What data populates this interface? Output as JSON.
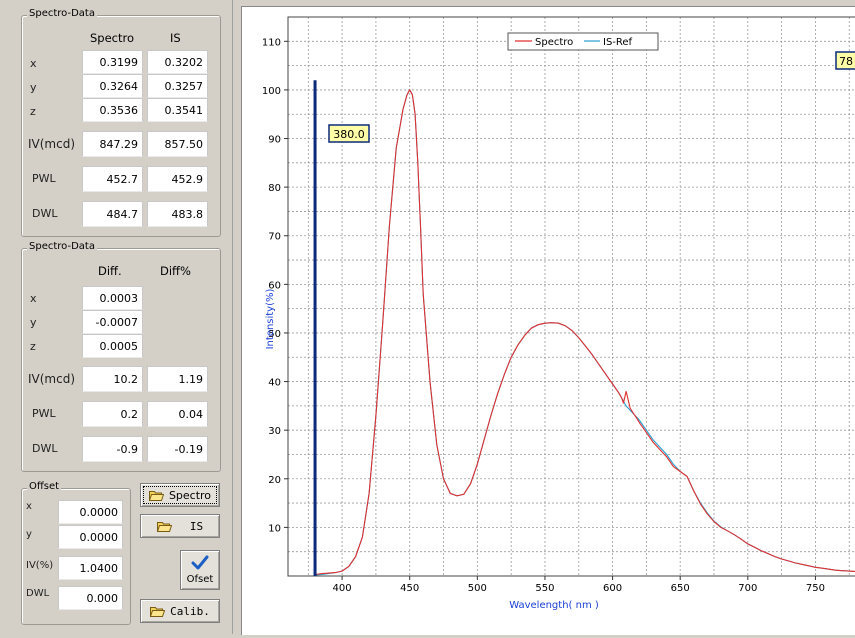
{
  "group1": {
    "title": "Spectro-Data",
    "col_spectro": "Spectro",
    "col_is": "IS",
    "rows": [
      {
        "label": "x",
        "spectro": "0.3199",
        "is": "0.3202"
      },
      {
        "label": "y",
        "spectro": "0.3264",
        "is": "0.3257"
      },
      {
        "label": "z",
        "spectro": "0.3536",
        "is": "0.3541"
      },
      {
        "label": "IV(mcd)",
        "spectro": "847.29",
        "is": "857.50"
      },
      {
        "label": "PWL",
        "spectro": "452.7",
        "is": "452.9"
      },
      {
        "label": "DWL",
        "spectro": "484.7",
        "is": "483.8"
      }
    ]
  },
  "group2": {
    "title": "Spectro-Data",
    "col_diff": "Diff.",
    "col_diffpct": "Diff%",
    "rows": [
      {
        "label": "x",
        "diff": "0.0003",
        "pct": ""
      },
      {
        "label": "y",
        "diff": "-0.0007",
        "pct": ""
      },
      {
        "label": "z",
        "diff": "0.0005",
        "pct": ""
      },
      {
        "label": "IV(mcd)",
        "diff": "10.2",
        "pct": "1.19"
      },
      {
        "label": "PWL",
        "diff": "0.2",
        "pct": "0.04"
      },
      {
        "label": "DWL",
        "diff": "-0.9",
        "pct": "-0.19"
      }
    ]
  },
  "offset": {
    "title": "Offset",
    "rows": [
      {
        "label": "x",
        "value": "0.0000"
      },
      {
        "label": "y",
        "value": "0.0000"
      },
      {
        "label": "IV(%)",
        "value": "1.0400"
      },
      {
        "label": "DWL",
        "value": "0.000"
      }
    ]
  },
  "buttons": {
    "spectro": "Spectro",
    "is": "IS",
    "ofset": "Ofset",
    "calib": "Calib."
  },
  "chart_data": {
    "type": "line",
    "xlabel": "Wavelength( nm )",
    "ylabel": "Intensity(%)",
    "xlim": [
      360,
      780
    ],
    "ylim": [
      0,
      115
    ],
    "x_ticks": [
      400,
      450,
      500,
      550,
      600,
      650,
      700,
      750
    ],
    "y_ticks": [
      10,
      20,
      30,
      40,
      50,
      60,
      70,
      80,
      90,
      100,
      110
    ],
    "grid": true,
    "legend": "top-center",
    "cursor_left": "380.0",
    "cursor_right": "78",
    "series": [
      {
        "name": "Spectro",
        "color": "#e03030",
        "x": [
          380,
          385,
          390,
          395,
          400,
          405,
          410,
          415,
          420,
          425,
          430,
          435,
          440,
          445,
          448,
          450,
          452,
          454,
          456,
          458,
          460,
          465,
          470,
          475,
          480,
          485,
          490,
          495,
          500,
          505,
          510,
          515,
          520,
          525,
          530,
          535,
          540,
          545,
          550,
          555,
          560,
          565,
          570,
          575,
          580,
          585,
          590,
          595,
          600,
          605,
          607,
          608,
          610,
          613,
          617,
          620,
          625,
          630,
          635,
          640,
          645,
          650,
          655,
          660,
          665,
          670,
          675,
          680,
          685,
          690,
          695,
          700,
          705,
          710,
          715,
          720,
          725,
          730,
          735,
          740,
          745,
          750,
          755,
          760,
          765,
          770,
          775,
          780
        ],
        "y": [
          0.3,
          0.5,
          0.6,
          0.7,
          1,
          2,
          4,
          8,
          17,
          33,
          52,
          72,
          88,
          96,
          99,
          100,
          99,
          95,
          85,
          72,
          58,
          40,
          27,
          20,
          17,
          16.5,
          16.8,
          19,
          23,
          28,
          33,
          37.5,
          41.5,
          45,
          47.5,
          49.5,
          51,
          51.7,
          52,
          52.1,
          52,
          51.5,
          50.5,
          49,
          47.3,
          45.5,
          43.5,
          41.5,
          39.5,
          37.5,
          36.5,
          35.5,
          38,
          34.5,
          32.8,
          31.5,
          29.5,
          27.5,
          26,
          24.5,
          22.5,
          21.5,
          20.5,
          17.5,
          14.8,
          12.8,
          11.2,
          10,
          9.3,
          8.5,
          7.6,
          6.6,
          5.9,
          5.2,
          4.6,
          4,
          3.5,
          3.1,
          2.7,
          2.4,
          2.1,
          1.8,
          1.6,
          1.4,
          1.2,
          1.1,
          1,
          0.9
        ]
      },
      {
        "name": "IS-Ref",
        "color": "#2a9fd0",
        "x": [
          380,
          385,
          390,
          395,
          400,
          405,
          410,
          415,
          420,
          425,
          430,
          435,
          440,
          445,
          448,
          450,
          452,
          454,
          456,
          458,
          460,
          465,
          470,
          475,
          480,
          485,
          490,
          495,
          500,
          505,
          510,
          515,
          520,
          525,
          530,
          535,
          540,
          545,
          550,
          555,
          560,
          565,
          570,
          575,
          580,
          585,
          590,
          595,
          600,
          605,
          610,
          615,
          620,
          625,
          630,
          635,
          640,
          645,
          650,
          655,
          660,
          665,
          670,
          675,
          680,
          685,
          690,
          695,
          700,
          705,
          710,
          715,
          720,
          725,
          730,
          735,
          740,
          745,
          750,
          755,
          760,
          765,
          770,
          775,
          780
        ],
        "y": [
          0.2,
          0.3,
          0.5,
          0.7,
          1,
          2,
          4,
          8,
          17,
          33,
          52,
          72,
          88,
          96,
          99,
          100,
          99,
          95,
          85,
          72,
          58,
          40,
          27,
          20,
          17,
          16.5,
          16.8,
          19,
          23,
          28,
          33,
          37.5,
          41.5,
          45,
          47.5,
          49.5,
          51,
          51.7,
          52,
          52.1,
          52,
          51.5,
          50.5,
          49,
          47.3,
          45.5,
          43.5,
          41.5,
          39.5,
          37.5,
          35,
          33.5,
          32,
          30,
          28,
          26.5,
          25,
          23,
          21.5,
          20.5,
          17.5,
          15,
          13,
          11.3,
          10.1,
          9.3,
          8.5,
          7.6,
          6.6,
          5.9,
          5.2,
          4.6,
          4,
          3.5,
          3.1,
          2.7,
          2.4,
          2.1,
          1.8,
          1.6,
          1.4,
          1.2,
          1.1,
          1,
          0.9
        ]
      }
    ]
  }
}
